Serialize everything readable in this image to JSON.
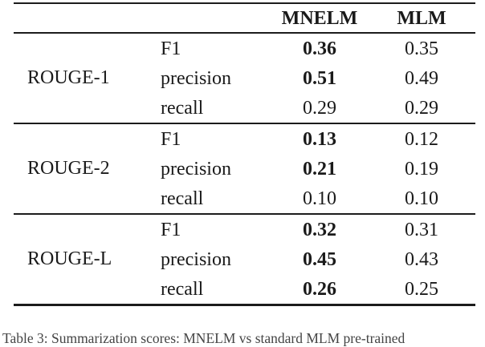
{
  "table": {
    "column_headers": [
      "MNELM",
      "MLM"
    ],
    "groups": [
      {
        "label": "ROUGE-1",
        "rows": [
          {
            "metric": "F1",
            "mnelm": "0.36",
            "mnelm_bold": true,
            "mlm": "0.35"
          },
          {
            "metric": "precision",
            "mnelm": "0.51",
            "mnelm_bold": true,
            "mlm": "0.49"
          },
          {
            "metric": "recall",
            "mnelm": "0.29",
            "mnelm_bold": false,
            "mlm": "0.29"
          }
        ]
      },
      {
        "label": "ROUGE-2",
        "rows": [
          {
            "metric": "F1",
            "mnelm": "0.13",
            "mnelm_bold": true,
            "mlm": "0.12"
          },
          {
            "metric": "precision",
            "mnelm": "0.21",
            "mnelm_bold": true,
            "mlm": "0.19"
          },
          {
            "metric": "recall",
            "mnelm": "0.10",
            "mnelm_bold": false,
            "mlm": "0.10"
          }
        ]
      },
      {
        "label": "ROUGE-L",
        "rows": [
          {
            "metric": "F1",
            "mnelm": "0.32",
            "mnelm_bold": true,
            "mlm": "0.31"
          },
          {
            "metric": "precision",
            "mnelm": "0.45",
            "mnelm_bold": true,
            "mlm": "0.43"
          },
          {
            "metric": "recall",
            "mnelm": "0.26",
            "mnelm_bold": true,
            "mlm": "0.25"
          }
        ]
      }
    ]
  },
  "caption": {
    "partial_text": "Table 3: Summarization scores: MNELM vs standard MLM pre-trained"
  }
}
